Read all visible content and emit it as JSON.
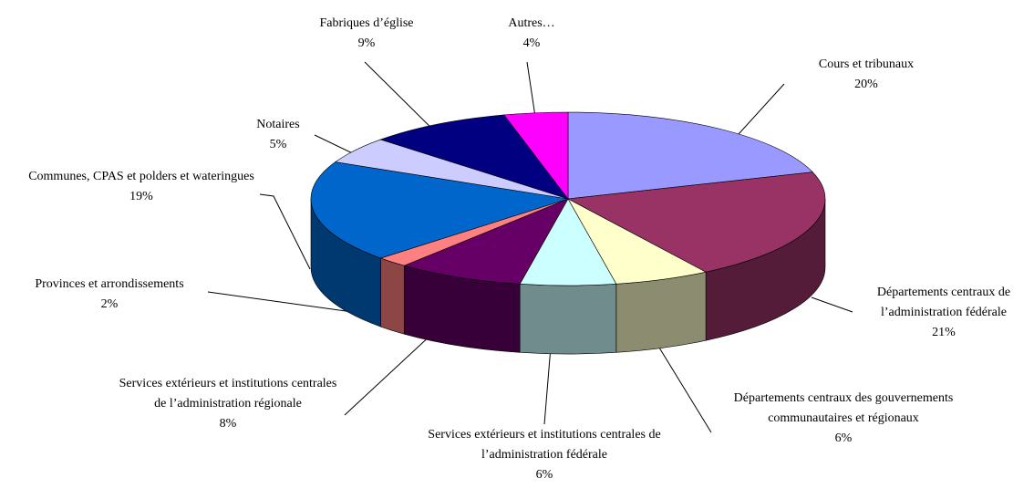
{
  "chart_data": {
    "type": "pie3d",
    "categories": [
      "Cours et tribunaux",
      "Départements centraux de l’administration fédérale",
      "Départements centraux des gouvernements communautaires et régionaux",
      "Services extérieurs et institutions centrales de l’administration fédérale",
      "Services extérieurs et institutions centrales de l’administration régionale",
      "Provinces et arrondissements",
      "Communes, CPAS et polders et wateringues",
      "Notaires",
      "Fabriques d’église",
      "Autres…"
    ],
    "values": [
      20,
      21,
      6,
      6,
      8,
      2,
      19,
      5,
      9,
      4
    ],
    "value_labels": [
      "20%",
      "21%",
      "6%",
      "6%",
      "8%",
      "2%",
      "19%",
      "5%",
      "9%",
      "4%"
    ],
    "colors": [
      "#9999ff",
      "#993366",
      "#ffffcc",
      "#ccffff",
      "#660066",
      "#ff8080",
      "#0066cc",
      "#ccccff",
      "#000080",
      "#ff00ff"
    ]
  }
}
